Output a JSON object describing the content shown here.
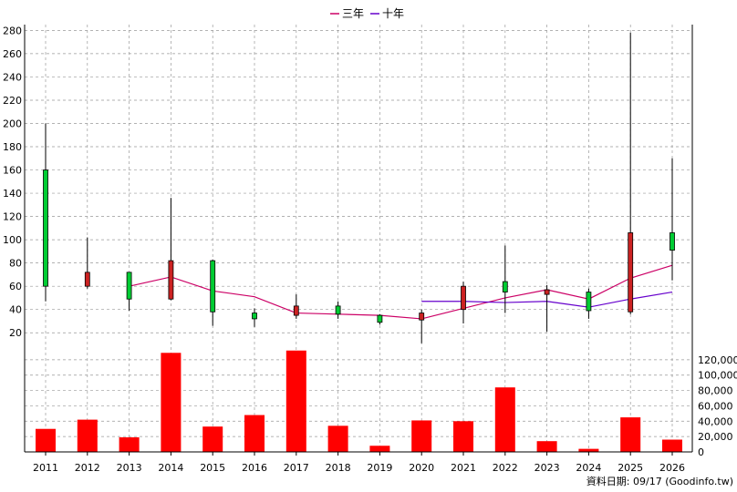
{
  "legend": [
    {
      "name": "三年",
      "color": "#cc0066"
    },
    {
      "name": "十年",
      "color": "#6600cc"
    }
  ],
  "footer_text": "資料日期: 09/17  (Goodinfo.tw)",
  "colors": {
    "up": "#00cc33",
    "down": "#cc2222",
    "volume": "#ff0000",
    "grid": "#999999"
  },
  "chart_data": [
    {
      "type": "candlestick",
      "title": "",
      "x": [
        "2011",
        "2012",
        "2013",
        "2014",
        "2015",
        "2016",
        "2017",
        "2018",
        "2019",
        "2020",
        "2021",
        "2022",
        "2023",
        "2024",
        "2025",
        "2026"
      ],
      "ylim": [
        10,
        285
      ],
      "yticks": [
        20,
        40,
        60,
        80,
        100,
        120,
        140,
        160,
        180,
        200,
        220,
        240,
        260,
        280
      ],
      "grid": true,
      "candles": [
        {
          "x": "2011",
          "open": 60,
          "close": 160,
          "high": 200,
          "low": 47
        },
        {
          "x": "2012",
          "open": 72,
          "close": 60,
          "high": 102,
          "low": 58
        },
        {
          "x": "2013",
          "open": 49,
          "close": 72,
          "high": 72,
          "low": 39
        },
        {
          "x": "2014",
          "open": 82,
          "close": 49,
          "high": 136,
          "low": 48
        },
        {
          "x": "2015",
          "open": 38,
          "close": 82,
          "high": 83,
          "low": 26
        },
        {
          "x": "2016",
          "open": 32,
          "close": 37,
          "high": 41,
          "low": 25
        },
        {
          "x": "2017",
          "open": 43,
          "close": 35,
          "high": 53,
          "low": 32
        },
        {
          "x": "2018",
          "open": 36,
          "close": 43,
          "high": 47,
          "low": 32
        },
        {
          "x": "2019",
          "open": 29,
          "close": 35,
          "high": 36,
          "low": 27
        },
        {
          "x": "2020",
          "open": 37,
          "close": 31,
          "high": 40,
          "low": 11
        },
        {
          "x": "2021",
          "open": 60,
          "close": 40,
          "high": 64,
          "low": 28
        },
        {
          "x": "2022",
          "open": 55,
          "close": 64,
          "high": 95,
          "low": 37
        },
        {
          "x": "2023",
          "open": 57,
          "close": 53,
          "high": 61,
          "low": 21
        },
        {
          "x": "2024",
          "open": 39,
          "close": 55,
          "high": 58,
          "low": 32
        },
        {
          "x": "2025",
          "open": 106,
          "close": 38,
          "high": 278,
          "low": 36
        },
        {
          "x": "2026",
          "open": 91,
          "close": 106,
          "high": 170,
          "low": 65
        }
      ],
      "series": [
        {
          "name": "三年",
          "x": [
            "2013",
            "2014",
            "2015",
            "2016",
            "2017",
            "2018",
            "2019",
            "2020",
            "2021",
            "2022",
            "2023",
            "2024",
            "2025",
            "2026"
          ],
          "values": [
            60,
            68,
            56,
            51,
            37,
            36,
            35,
            32,
            41,
            50,
            57,
            49,
            67,
            78
          ]
        },
        {
          "name": "十年",
          "x": [
            "2020",
            "2021",
            "2022",
            "2023",
            "2024",
            "2025",
            "2026"
          ],
          "values": [
            47,
            47,
            46,
            47,
            42,
            49,
            55
          ]
        }
      ]
    },
    {
      "type": "bar",
      "title": "",
      "categories": [
        "2011",
        "2012",
        "2013",
        "2014",
        "2015",
        "2016",
        "2017",
        "2018",
        "2019",
        "2020",
        "2021",
        "2022",
        "2023",
        "2024",
        "2025",
        "2026"
      ],
      "values": [
        30000,
        42000,
        19000,
        129000,
        33000,
        48000,
        132000,
        34000,
        8000,
        41000,
        40000,
        84000,
        14000,
        4000,
        45000,
        16000
      ],
      "ylim": [
        0,
        140000
      ],
      "yticks": [
        0,
        20000,
        40000,
        60000,
        80000,
        100000,
        120000
      ],
      "ytick_labels": [
        "0",
        "20,000",
        "40,000",
        "60,000",
        "80,000",
        "100,000",
        "120,000"
      ],
      "grid": true
    }
  ]
}
